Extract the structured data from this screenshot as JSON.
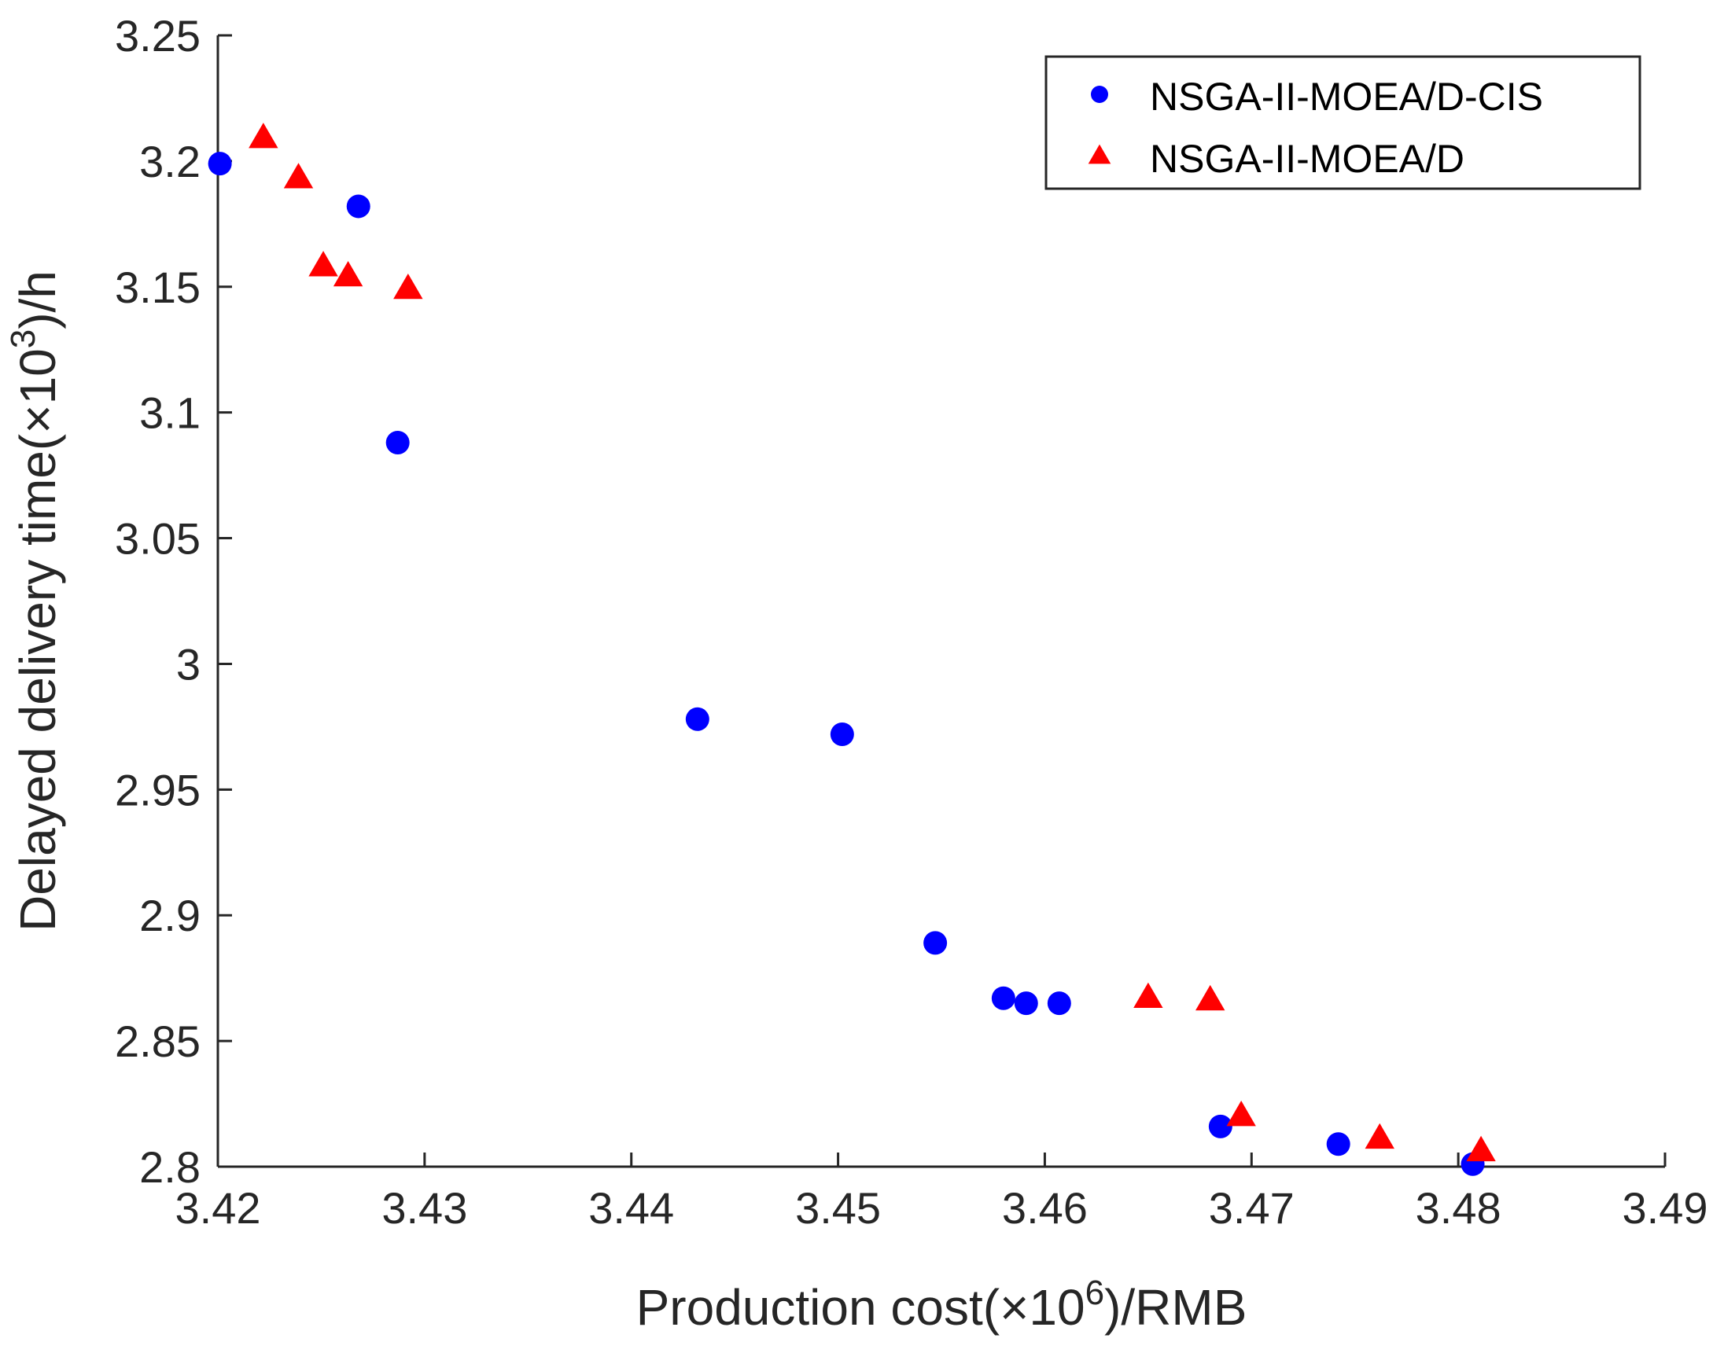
{
  "chart_data": {
    "type": "scatter",
    "title": "",
    "xlabel": {
      "prefix": "Production cost(×10",
      "superscript": "6",
      "suffix": ")/RMB"
    },
    "ylabel": {
      "prefix": "Delayed delivery time(×10",
      "superscript": "3",
      "suffix": ")/h"
    },
    "xlim": [
      3.42,
      3.49
    ],
    "ylim": [
      2.8,
      3.25
    ],
    "xticks": [
      "3.42",
      "3.43",
      "3.44",
      "3.45",
      "3.46",
      "3.47",
      "3.48",
      "3.49"
    ],
    "yticks": [
      "2.8",
      "2.85",
      "2.9",
      "2.95",
      "3",
      "3.05",
      "3.1",
      "3.15",
      "3.2",
      "3.25"
    ],
    "grid": false,
    "legend_position": "top-right",
    "series": [
      {
        "name": "NSGA-II-MOEA/D-CIS",
        "marker": "circle",
        "color": "#0000ff",
        "points": [
          [
            3.4201,
            3.199
          ],
          [
            3.4268,
            3.182
          ],
          [
            3.4287,
            3.088
          ],
          [
            3.4432,
            2.978
          ],
          [
            3.4502,
            2.972
          ],
          [
            3.4547,
            2.889
          ],
          [
            3.458,
            2.867
          ],
          [
            3.4591,
            2.865
          ],
          [
            3.4607,
            2.865
          ],
          [
            3.4685,
            2.816
          ],
          [
            3.4742,
            2.809
          ],
          [
            3.4807,
            2.801
          ]
        ]
      },
      {
        "name": "NSGA-II-MOEA/D",
        "marker": "triangle",
        "color": "#ff0000",
        "points": [
          [
            3.4222,
            3.209
          ],
          [
            3.4239,
            3.193
          ],
          [
            3.4251,
            3.158
          ],
          [
            3.4263,
            3.154
          ],
          [
            3.4292,
            3.149
          ],
          [
            3.465,
            2.867
          ],
          [
            3.468,
            2.866
          ],
          [
            3.4695,
            2.82
          ],
          [
            3.4762,
            2.811
          ],
          [
            3.4811,
            2.806
          ]
        ]
      }
    ]
  }
}
